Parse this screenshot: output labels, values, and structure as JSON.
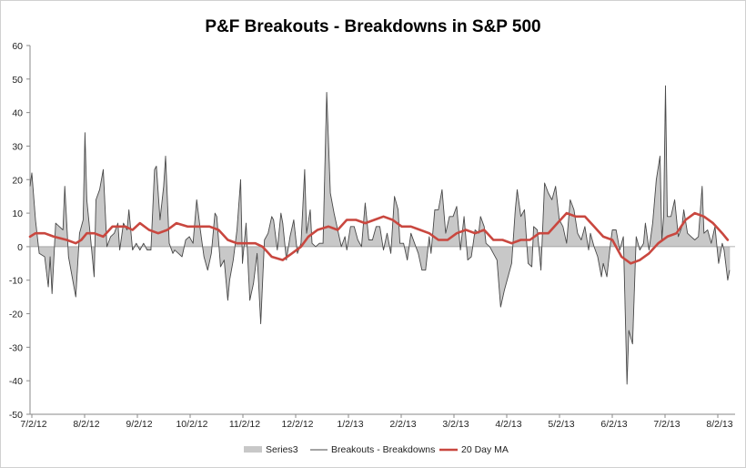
{
  "chart_data": {
    "type": "line",
    "title": "P&F Breakouts - Breakdowns in S&P 500",
    "xlabel": "",
    "ylabel": "",
    "ylim": [
      -50,
      60
    ],
    "yticks": [
      -50,
      -40,
      -30,
      -20,
      -10,
      0,
      10,
      20,
      30,
      40,
      50,
      60
    ],
    "xticks": [
      "7/2/12",
      "8/2/12",
      "9/2/12",
      "10/2/12",
      "11/2/12",
      "12/2/12",
      "1/2/13",
      "2/2/13",
      "3/2/13",
      "4/2/13",
      "5/2/13",
      "6/2/13",
      "7/2/13",
      "8/2/13"
    ],
    "legend_position": "bottom",
    "colors": {
      "area_fill": "#c8c8c8",
      "area_stroke": "#a9a9a9",
      "line": "#4a4a4a",
      "ma": "#c9473f",
      "axis": "#8a8a8a"
    },
    "series": [
      {
        "name": "Series3",
        "kind": "area",
        "points": [
          [
            0,
            18
          ],
          [
            1,
            22
          ],
          [
            3,
            8
          ],
          [
            5,
            -2
          ],
          [
            8,
            -3
          ],
          [
            10,
            -12
          ],
          [
            11,
            -3
          ],
          [
            12,
            -14
          ],
          [
            14,
            7
          ],
          [
            16,
            6
          ],
          [
            18,
            5
          ],
          [
            19,
            18
          ],
          [
            21,
            -3
          ],
          [
            23,
            -9
          ],
          [
            25,
            -15
          ],
          [
            27,
            4
          ],
          [
            29,
            8
          ],
          [
            30,
            34
          ],
          [
            31,
            14
          ],
          [
            33,
            3
          ],
          [
            35,
            -9
          ],
          [
            36,
            14
          ],
          [
            38,
            17
          ],
          [
            40,
            23
          ],
          [
            42,
            0
          ],
          [
            44,
            3
          ],
          [
            46,
            4
          ],
          [
            48,
            7
          ],
          [
            49,
            -1
          ],
          [
            51,
            7
          ],
          [
            53,
            5
          ],
          [
            54,
            11
          ],
          [
            56,
            -1
          ],
          [
            58,
            1
          ],
          [
            60,
            -1
          ],
          [
            62,
            1
          ],
          [
            64,
            -1
          ],
          [
            66,
            -1
          ],
          [
            68,
            23
          ],
          [
            69,
            24
          ],
          [
            71,
            8
          ],
          [
            73,
            18
          ],
          [
            74,
            27
          ],
          [
            76,
            1
          ],
          [
            78,
            -2
          ],
          [
            79,
            -1
          ],
          [
            81,
            -2
          ],
          [
            83,
            -3
          ],
          [
            85,
            2
          ],
          [
            87,
            3
          ],
          [
            89,
            1
          ],
          [
            91,
            14
          ],
          [
            93,
            5
          ],
          [
            95,
            -3
          ],
          [
            97,
            -7
          ],
          [
            99,
            -2
          ],
          [
            101,
            10
          ],
          [
            102,
            9
          ],
          [
            104,
            -6
          ],
          [
            106,
            -4
          ],
          [
            108,
            -16
          ],
          [
            109,
            -10
          ],
          [
            111,
            -4
          ],
          [
            113,
            5
          ],
          [
            115,
            20
          ],
          [
            116,
            -5
          ],
          [
            118,
            7
          ],
          [
            120,
            -16
          ],
          [
            122,
            -11
          ],
          [
            124,
            -2
          ],
          [
            126,
            -23
          ],
          [
            128,
            2
          ],
          [
            130,
            4
          ],
          [
            132,
            9
          ],
          [
            133,
            8
          ],
          [
            135,
            -1
          ],
          [
            137,
            10
          ],
          [
            138,
            7
          ],
          [
            140,
            -4
          ],
          [
            142,
            3
          ],
          [
            144,
            8
          ],
          [
            146,
            -2
          ],
          [
            148,
            1
          ],
          [
            150,
            23
          ],
          [
            151,
            4
          ],
          [
            153,
            11
          ],
          [
            154,
            1
          ],
          [
            156,
            0
          ],
          [
            158,
            1
          ],
          [
            160,
            1
          ],
          [
            162,
            46
          ],
          [
            164,
            16
          ],
          [
            166,
            10
          ],
          [
            168,
            5
          ],
          [
            170,
            0
          ],
          [
            172,
            3
          ],
          [
            173,
            -1
          ],
          [
            175,
            6
          ],
          [
            177,
            6
          ],
          [
            179,
            2
          ],
          [
            181,
            0
          ],
          [
            183,
            13
          ],
          [
            185,
            2
          ],
          [
            187,
            2
          ],
          [
            189,
            6
          ],
          [
            191,
            6
          ],
          [
            193,
            -1
          ],
          [
            195,
            4
          ],
          [
            197,
            -2
          ],
          [
            199,
            15
          ],
          [
            201,
            11
          ],
          [
            202,
            1
          ],
          [
            204,
            1
          ],
          [
            206,
            -4
          ],
          [
            208,
            4
          ],
          [
            210,
            1
          ],
          [
            212,
            -2
          ],
          [
            214,
            -7
          ],
          [
            216,
            -7
          ],
          [
            218,
            3
          ],
          [
            219,
            -2
          ],
          [
            221,
            11
          ],
          [
            223,
            11
          ],
          [
            225,
            17
          ],
          [
            227,
            4
          ],
          [
            229,
            9
          ],
          [
            231,
            9
          ],
          [
            233,
            12
          ],
          [
            235,
            -1
          ],
          [
            237,
            9
          ],
          [
            239,
            -4
          ],
          [
            241,
            -3
          ],
          [
            243,
            5
          ],
          [
            245,
            4
          ],
          [
            246,
            9
          ],
          [
            248,
            6
          ],
          [
            249,
            1
          ],
          [
            251,
            0
          ],
          [
            253,
            -2
          ],
          [
            255,
            -4
          ],
          [
            257,
            -18
          ],
          [
            259,
            -13
          ],
          [
            261,
            -9
          ],
          [
            263,
            -5
          ],
          [
            265,
            11
          ],
          [
            266,
            17
          ],
          [
            268,
            9
          ],
          [
            270,
            11
          ],
          [
            272,
            -5
          ],
          [
            274,
            -6
          ],
          [
            275,
            6
          ],
          [
            277,
            5
          ],
          [
            279,
            -7
          ],
          [
            281,
            19
          ],
          [
            283,
            16
          ],
          [
            285,
            14
          ],
          [
            287,
            18
          ],
          [
            289,
            8
          ],
          [
            291,
            6
          ],
          [
            293,
            1
          ],
          [
            295,
            14
          ],
          [
            297,
            11
          ],
          [
            299,
            4
          ],
          [
            301,
            2
          ],
          [
            303,
            6
          ],
          [
            305,
            -1
          ],
          [
            306,
            4
          ],
          [
            308,
            0
          ],
          [
            310,
            -3
          ],
          [
            312,
            -9
          ],
          [
            313,
            -5
          ],
          [
            315,
            -9
          ],
          [
            317,
            1
          ],
          [
            318,
            5
          ],
          [
            320,
            5
          ],
          [
            322,
            -1
          ],
          [
            324,
            3
          ],
          [
            326,
            -41
          ],
          [
            327,
            -25
          ],
          [
            329,
            -29
          ],
          [
            331,
            3
          ],
          [
            333,
            -1
          ],
          [
            335,
            1
          ],
          [
            336,
            7
          ],
          [
            338,
            -1
          ],
          [
            340,
            7
          ],
          [
            342,
            20
          ],
          [
            344,
            27
          ],
          [
            345,
            2
          ],
          [
            346,
            9
          ],
          [
            347,
            48
          ],
          [
            348,
            9
          ],
          [
            350,
            9
          ],
          [
            352,
            14
          ],
          [
            354,
            3
          ],
          [
            356,
            6
          ],
          [
            357,
            11
          ],
          [
            359,
            4
          ],
          [
            361,
            3
          ],
          [
            363,
            2
          ],
          [
            365,
            3
          ],
          [
            367,
            18
          ],
          [
            368,
            4
          ],
          [
            370,
            5
          ],
          [
            372,
            1
          ],
          [
            374,
            6
          ],
          [
            376,
            -5
          ],
          [
            378,
            1
          ],
          [
            379,
            -1
          ],
          [
            381,
            -10
          ],
          [
            382,
            -7
          ]
        ]
      },
      {
        "name": "Breakouts - Breakdowns",
        "kind": "line",
        "same_as": "Series3"
      },
      {
        "name": "20 Day MA",
        "kind": "line",
        "points": [
          [
            0,
            3
          ],
          [
            3,
            4
          ],
          [
            8,
            4
          ],
          [
            13,
            3
          ],
          [
            20,
            2
          ],
          [
            25,
            1
          ],
          [
            28,
            2
          ],
          [
            31,
            4
          ],
          [
            35,
            4
          ],
          [
            40,
            3
          ],
          [
            45,
            6
          ],
          [
            52,
            6
          ],
          [
            56,
            5
          ],
          [
            60,
            7
          ],
          [
            65,
            5
          ],
          [
            70,
            4
          ],
          [
            75,
            5
          ],
          [
            80,
            7
          ],
          [
            86,
            6
          ],
          [
            93,
            6
          ],
          [
            98,
            6
          ],
          [
            103,
            5
          ],
          [
            108,
            2
          ],
          [
            113,
            1
          ],
          [
            118,
            1
          ],
          [
            123,
            1
          ],
          [
            127,
            0
          ],
          [
            132,
            -3
          ],
          [
            138,
            -4
          ],
          [
            143,
            -2
          ],
          [
            148,
            0
          ],
          [
            152,
            3
          ],
          [
            157,
            5
          ],
          [
            163,
            6
          ],
          [
            168,
            5
          ],
          [
            173,
            8
          ],
          [
            178,
            8
          ],
          [
            183,
            7
          ],
          [
            188,
            8
          ],
          [
            193,
            9
          ],
          [
            198,
            8
          ],
          [
            203,
            6
          ],
          [
            208,
            6
          ],
          [
            213,
            5
          ],
          [
            218,
            4
          ],
          [
            223,
            2
          ],
          [
            228,
            2
          ],
          [
            233,
            4
          ],
          [
            238,
            5
          ],
          [
            243,
            4
          ],
          [
            248,
            5
          ],
          [
            253,
            2
          ],
          [
            258,
            2
          ],
          [
            263,
            1
          ],
          [
            268,
            2
          ],
          [
            273,
            2
          ],
          [
            278,
            4
          ],
          [
            283,
            4
          ],
          [
            288,
            7
          ],
          [
            293,
            10
          ],
          [
            298,
            9
          ],
          [
            303,
            9
          ],
          [
            308,
            6
          ],
          [
            313,
            3
          ],
          [
            318,
            2
          ],
          [
            323,
            -3
          ],
          [
            328,
            -5
          ],
          [
            333,
            -4
          ],
          [
            338,
            -2
          ],
          [
            343,
            1
          ],
          [
            348,
            3
          ],
          [
            353,
            4
          ],
          [
            358,
            8
          ],
          [
            363,
            10
          ],
          [
            368,
            9
          ],
          [
            373,
            7
          ],
          [
            378,
            4
          ],
          [
            381,
            2
          ]
        ]
      }
    ]
  }
}
